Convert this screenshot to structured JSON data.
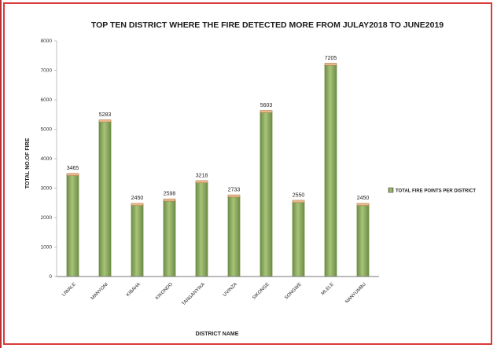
{
  "chart_data": {
    "type": "bar",
    "title": "TOP TEN DISTRICT WHERE THE FIRE DETECTED MORE FROM JULAY2018 TO JUNE2019",
    "xlabel": "DISTRICT NAME",
    "ylabel": "TOTAL NO.OF FIRE",
    "ylim": [
      0,
      8000
    ],
    "yticks": [
      0,
      1000,
      2000,
      3000,
      4000,
      5000,
      6000,
      7000,
      8000
    ],
    "categories": [
      "LIWALE",
      "MANYONI",
      "KIBAHA",
      "KIKONDO",
      "TANGANYIKA",
      "UVINZA",
      "SIKONGE",
      "SONGWE",
      "MLELE",
      "NANYUMBU"
    ],
    "series": [
      {
        "name": "TOTAL FIRE POINTS PER DISTRICT",
        "values": [
          3465,
          5283,
          2450,
          2598,
          3218,
          2733,
          5603,
          2550,
          7205,
          2450
        ]
      }
    ],
    "grid": false,
    "legend": "right",
    "colors": {
      "bar": "#8fae5e",
      "bar_edge": "#6f8f45",
      "bar_top": "#e8b88a",
      "frame": "#d93a3a"
    }
  }
}
